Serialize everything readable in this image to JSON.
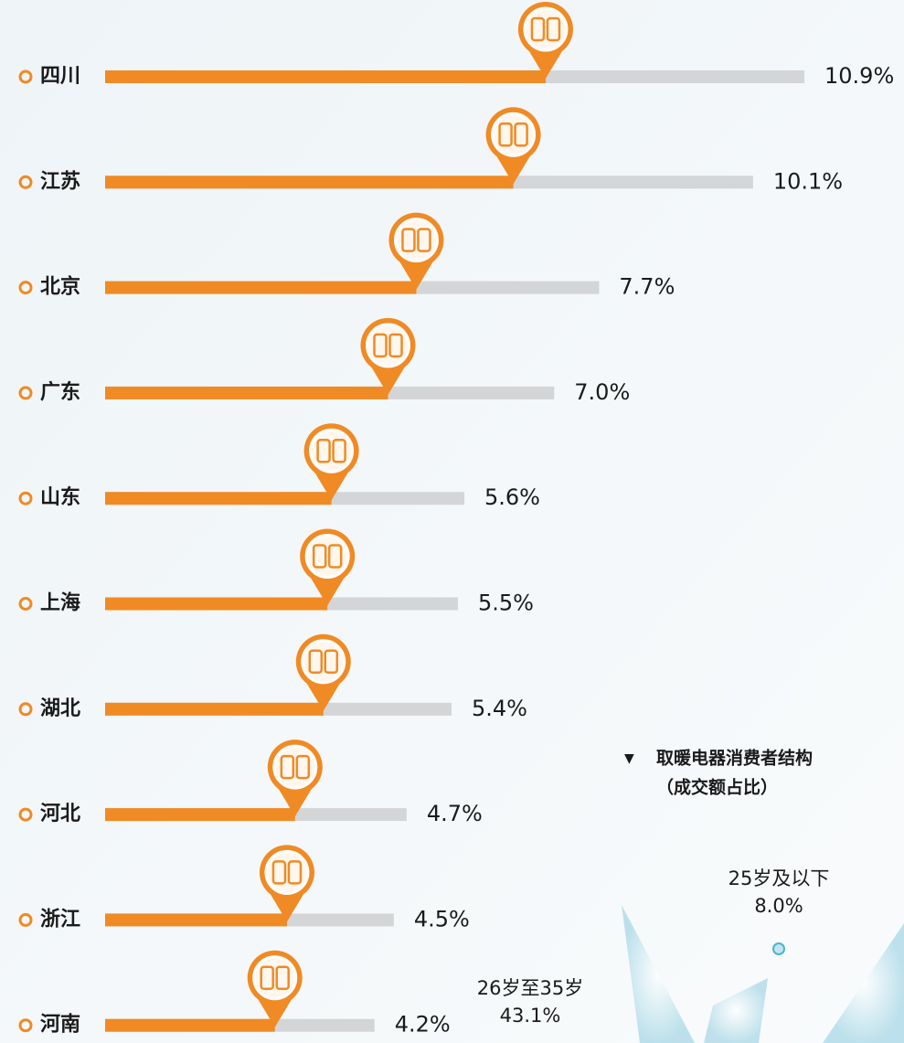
{
  "chart_data": [
    {
      "type": "bar",
      "categories": [
        "四川",
        "江苏",
        "北京",
        "广东",
        "山东",
        "上海",
        "湖北",
        "河北",
        "浙江",
        "河南"
      ],
      "values": [
        10.9,
        10.1,
        7.7,
        7.0,
        5.6,
        5.5,
        5.4,
        4.7,
        4.5,
        4.2
      ],
      "value_labels": [
        "10.9%",
        "10.1%",
        "7.7%",
        "7.0%",
        "5.6%",
        "5.5%",
        "5.4%",
        "4.7%",
        "4.5%",
        "4.2%"
      ],
      "color": "#f08a24",
      "track_color": "#d3d5d7"
    },
    {
      "type": "pie",
      "title": "取暖电器消费者结构",
      "subtitle": "（成交额占比）",
      "categories": [
        "25岁及以下",
        "26岁至35岁"
      ],
      "values": [
        8.0,
        43.1
      ],
      "value_labels": [
        "8.0%",
        "43.1%"
      ],
      "color": "#4fb3c8"
    }
  ]
}
